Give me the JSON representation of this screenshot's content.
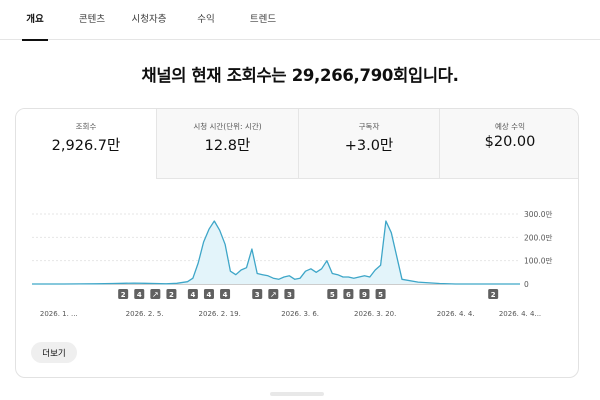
{
  "tabs": [
    {
      "label": "개요",
      "active": true
    },
    {
      "label": "콘텐츠",
      "active": false
    },
    {
      "label": "시청자층",
      "active": false
    },
    {
      "label": "수익",
      "active": false
    },
    {
      "label": "트렌드",
      "active": false
    }
  ],
  "headline": "채널의 현재 조회수는 29,266,790회입니다.",
  "metrics": [
    {
      "label": "조회수",
      "value": "2,926.7만"
    },
    {
      "label": "시청 시간(단위: 시간)",
      "value": "12.8만"
    },
    {
      "label": "구독자",
      "value": "+3.0만"
    },
    {
      "label": "예상 수익",
      "value": "$20.00"
    }
  ],
  "more_button": "더보기",
  "chart_data": {
    "type": "area",
    "x": [
      "2026-01-15",
      "2026-01-18",
      "2026-01-21",
      "2026-01-24",
      "2026-01-27",
      "2026-01-30",
      "2026-02-01",
      "2026-02-03",
      "2026-02-05",
      "2026-02-07",
      "2026-02-09",
      "2026-02-11",
      "2026-02-13",
      "2026-02-14",
      "2026-02-15",
      "2026-02-16",
      "2026-02-17",
      "2026-02-18",
      "2026-02-19",
      "2026-02-20",
      "2026-02-21",
      "2026-02-22",
      "2026-02-23",
      "2026-02-24",
      "2026-02-25",
      "2026-02-26",
      "2026-02-27",
      "2026-02-28",
      "2026-03-01",
      "2026-03-02",
      "2026-03-03",
      "2026-03-04",
      "2026-03-05",
      "2026-03-06",
      "2026-03-07",
      "2026-03-08",
      "2026-03-09",
      "2026-03-10",
      "2026-03-11",
      "2026-03-12",
      "2026-03-13",
      "2026-03-14",
      "2026-03-15",
      "2026-03-16",
      "2026-03-17",
      "2026-03-18",
      "2026-03-19",
      "2026-03-20",
      "2026-03-21",
      "2026-03-22",
      "2026-03-23",
      "2026-03-25",
      "2026-03-28",
      "2026-04-01",
      "2026-04-04",
      "2026-04-08",
      "2026-04-12",
      "2026-04-16"
    ],
    "values": [
      0,
      0,
      0,
      0.5,
      1,
      2,
      3,
      4,
      3,
      2,
      1,
      3,
      10,
      25,
      90,
      180,
      235,
      270,
      230,
      170,
      55,
      40,
      60,
      70,
      150,
      45,
      40,
      35,
      25,
      20,
      30,
      35,
      20,
      25,
      55,
      65,
      50,
      65,
      100,
      45,
      40,
      30,
      30,
      25,
      30,
      35,
      30,
      60,
      80,
      270,
      220,
      20,
      8,
      2,
      0,
      0,
      0,
      0
    ],
    "yticks": [
      "0",
      "100.0만",
      "200.0만",
      "300.0만"
    ],
    "ytick_values": [
      0,
      100,
      200,
      300
    ],
    "ylim": [
      0,
      300
    ],
    "y_unit": "만",
    "xticks": [
      "2026. 1. ...",
      "2026. 2. 5.",
      "2026. 2. 19.",
      "2026. 3. 6.",
      "2026. 3. 20.",
      "2026. 4. 4.",
      "2026. 4. 4..."
    ],
    "xtick_dates": [
      "2026-01-20",
      "2026-02-05",
      "2026-02-19",
      "2026-03-06",
      "2026-03-20",
      "2026-04-04",
      "2026-04-16"
    ],
    "markers": [
      {
        "label": "2",
        "date": "2026-02-01"
      },
      {
        "label": "4",
        "date": "2026-02-04"
      },
      {
        "label": "link",
        "icon": "link-icon",
        "date": "2026-02-07"
      },
      {
        "label": "2",
        "date": "2026-02-10"
      },
      {
        "label": "4",
        "date": "2026-02-14"
      },
      {
        "label": "4",
        "date": "2026-02-17"
      },
      {
        "label": "4",
        "date": "2026-02-20"
      },
      {
        "label": "3",
        "date": "2026-02-26"
      },
      {
        "label": "link",
        "icon": "link-icon",
        "date": "2026-03-01"
      },
      {
        "label": "3",
        "date": "2026-03-04"
      },
      {
        "label": "5",
        "date": "2026-03-12"
      },
      {
        "label": "6",
        "date": "2026-03-15"
      },
      {
        "label": "9",
        "date": "2026-03-18"
      },
      {
        "label": "5",
        "date": "2026-03-21"
      },
      {
        "label": "2",
        "date": "2026-04-11"
      }
    ],
    "line_color": "#3ea6c8",
    "fill_color": "#e3f4fa",
    "marker_color": "#606060",
    "grid": true
  }
}
